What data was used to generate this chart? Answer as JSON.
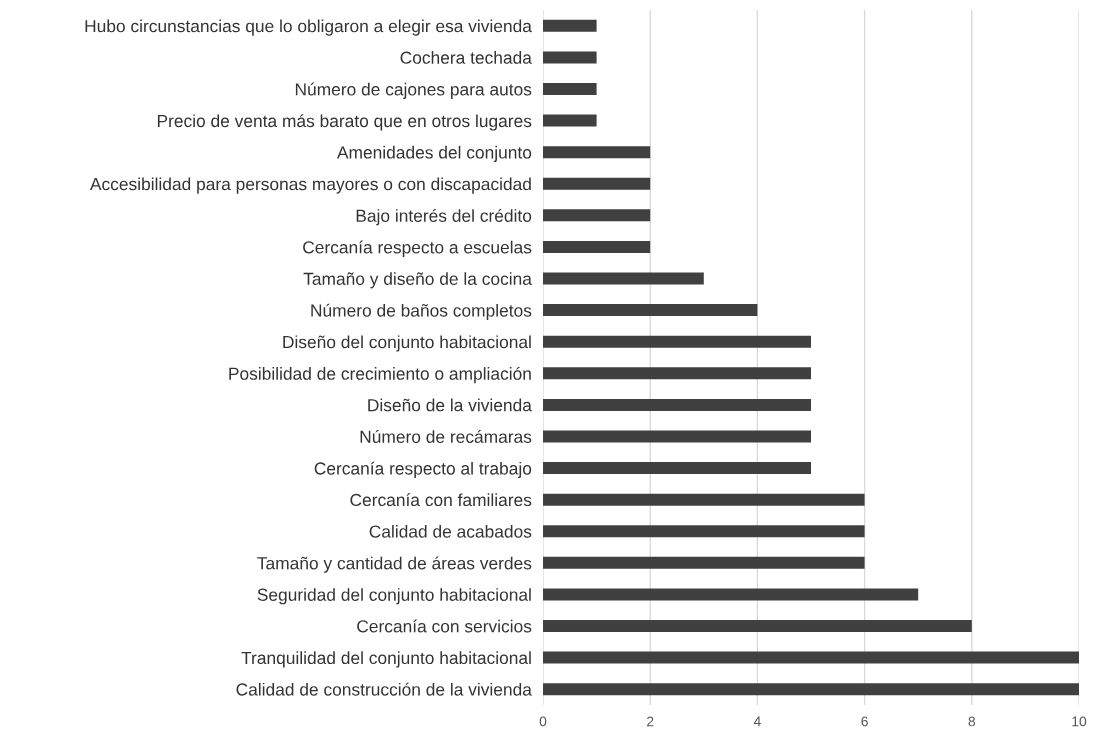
{
  "chart_data": {
    "type": "bar",
    "orientation": "horizontal",
    "categories": [
      "Hubo circunstancias que lo obligaron a elegir esa vivienda",
      "Cochera techada",
      "Número de cajones para autos",
      "Precio de venta más barato que en otros lugares",
      "Amenidades del conjunto",
      "Accesibilidad para personas mayores o con discapacidad",
      "Bajo interés del crédito",
      "Cercanía respecto a escuelas",
      "Tamaño y diseño de la cocina",
      "Número de baños completos",
      "Diseño del conjunto habitacional",
      "Posibilidad de crecimiento o ampliación",
      "Diseño de la vivienda",
      "Número de recámaras",
      "Cercanía respecto al trabajo",
      "Cercanía con familiares",
      "Calidad de acabados",
      "Tamaño y cantidad de áreas verdes",
      "Seguridad del conjunto habitacional",
      "Cercanía con servicios",
      "Tranquilidad del conjunto habitacional",
      "Calidad de construcción de la vivienda"
    ],
    "values": [
      1,
      1,
      1,
      1,
      2,
      2,
      2,
      2,
      3,
      4,
      5,
      5,
      5,
      5,
      5,
      6,
      6,
      6,
      7,
      8,
      10,
      10
    ],
    "color": "#404040",
    "xlim": [
      0,
      10
    ],
    "xticks": [
      0,
      2,
      4,
      6,
      8,
      10
    ],
    "grid": "x"
  }
}
